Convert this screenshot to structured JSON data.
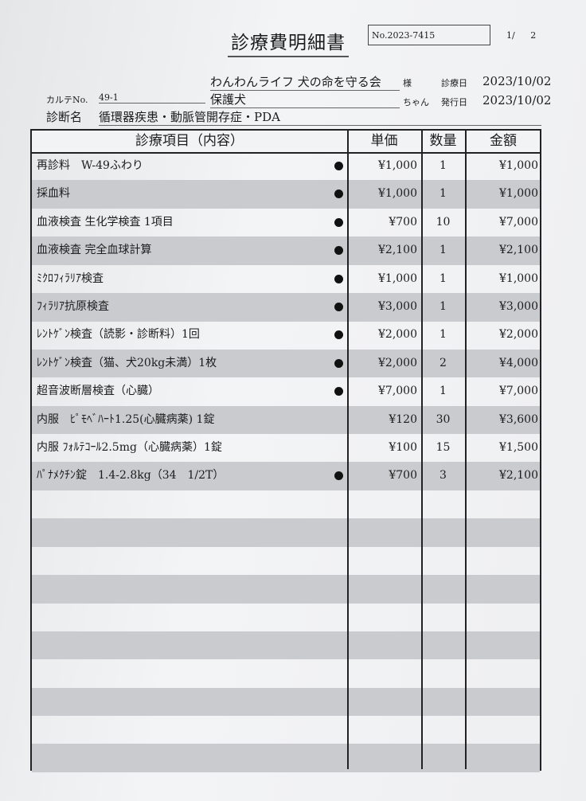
{
  "document": {
    "title": "診療費明細書",
    "doc_no": "No.2023-7415",
    "page": "1/ 2",
    "client_name": "わんわんライフ 犬の命を守る会",
    "client_suffix": "様",
    "visit_date_label": "診療日",
    "visit_date": "2023/10/02",
    "chart_no_label": "カルテNo.",
    "chart_no": "49-1",
    "pet_name": "保護犬",
    "pet_suffix": "ちゃん",
    "issue_date_label": "発行日",
    "issue_date": "2023/10/02",
    "diagnosis_label": "診断名",
    "diagnosis": "循環器疾患・動脈管開存症・PDA"
  },
  "table": {
    "headers": {
      "item": "診療項目（内容）",
      "unit_price": "単価",
      "quantity": "数量",
      "amount": "金額"
    },
    "rows": [
      {
        "item": "再診料　W-49ふわり",
        "taxed": true,
        "unit_price": "¥1,000",
        "quantity": "1",
        "amount": "¥1,000"
      },
      {
        "item": "採血料",
        "taxed": true,
        "unit_price": "¥1,000",
        "quantity": "1",
        "amount": "¥1,000"
      },
      {
        "item": "血液検査 生化学検査 1項目",
        "taxed": true,
        "unit_price": "¥700",
        "quantity": "10",
        "amount": "¥7,000"
      },
      {
        "item": "血液検査 完全血球計算",
        "taxed": true,
        "unit_price": "¥2,100",
        "quantity": "1",
        "amount": "¥2,100"
      },
      {
        "item": "ﾐｸﾛﾌｨﾗﾘｱ検査",
        "taxed": true,
        "unit_price": "¥1,000",
        "quantity": "1",
        "amount": "¥1,000"
      },
      {
        "item": "ﾌｨﾗﾘｱ抗原検査",
        "taxed": true,
        "unit_price": "¥3,000",
        "quantity": "1",
        "amount": "¥3,000"
      },
      {
        "item": "ﾚﾝﾄｹﾞﾝ検査（読影・診断料）1回",
        "taxed": true,
        "unit_price": "¥2,000",
        "quantity": "1",
        "amount": "¥2,000"
      },
      {
        "item": "ﾚﾝﾄｹﾞﾝ検査（猫、犬20kg未満）1枚",
        "taxed": true,
        "unit_price": "¥2,000",
        "quantity": "2",
        "amount": "¥4,000"
      },
      {
        "item": "超音波断層検査（心臓）",
        "taxed": true,
        "unit_price": "¥7,000",
        "quantity": "1",
        "amount": "¥7,000"
      },
      {
        "item": "内服　ﾋﾟﾓﾍﾞﾊｰﾄ1.25(心臓病薬) 1錠",
        "taxed": false,
        "unit_price": "¥120",
        "quantity": "30",
        "amount": "¥3,600"
      },
      {
        "item": "内服 ﾌｫﾙﾃｺｰﾙ2.5mg（心臓病薬）1錠",
        "taxed": false,
        "unit_price": "¥100",
        "quantity": "15",
        "amount": "¥1,500"
      },
      {
        "item": "ﾊﾟﾅﾒｸﾁﾝ錠　1.4-2.8kg（34　1/2T）",
        "taxed": true,
        "unit_price": "¥700",
        "quantity": "3",
        "amount": "¥2,100"
      }
    ]
  }
}
